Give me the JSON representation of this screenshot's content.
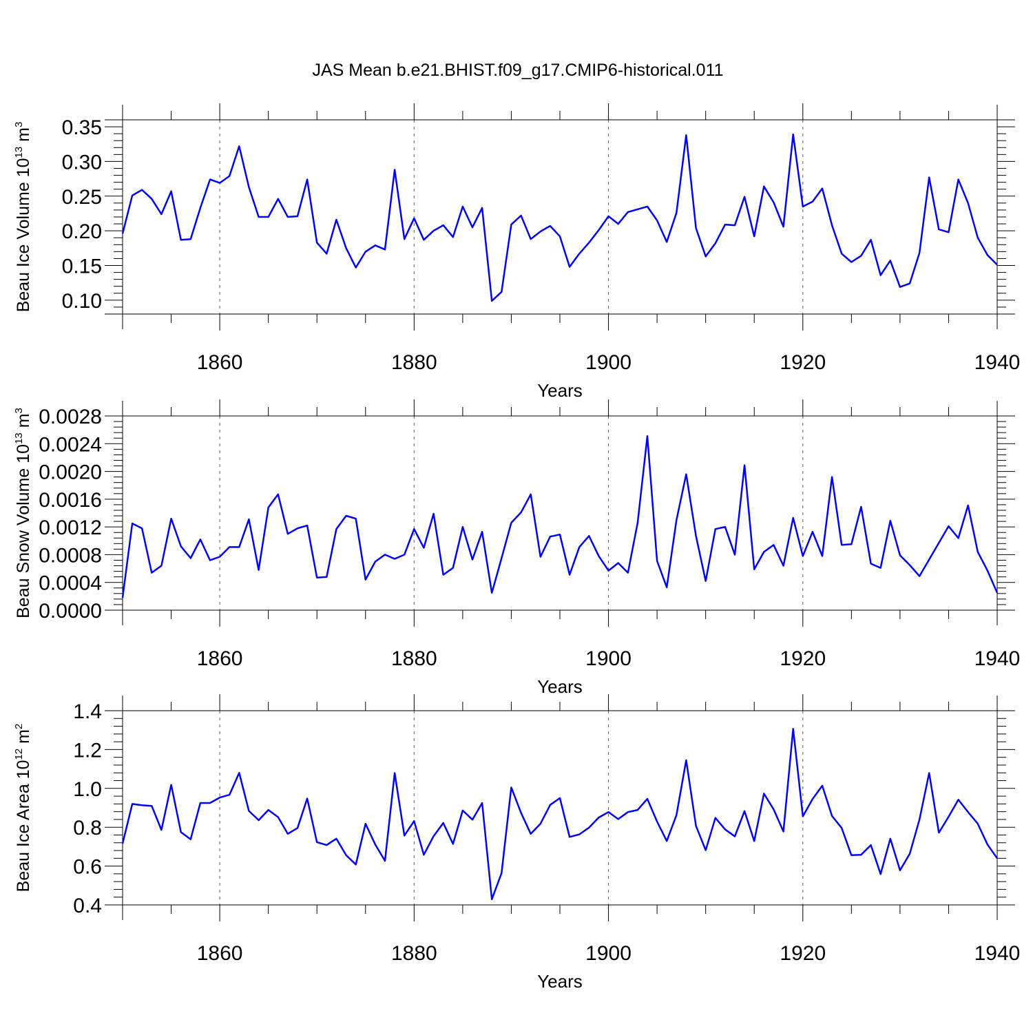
{
  "title": "JAS Mean b.e21.BHIST.f09_g17.CMIP6-historical.011",
  "colors": {
    "line": "#0000ff",
    "axis": "#000000",
    "grid": "#555555"
  },
  "chart_data": [
    {
      "type": "line",
      "xlabel": "Years",
      "ylabel": {
        "text": "Beau Ice Volume 10",
        "sup": "13",
        "unit": " m",
        "unit_sup": "3"
      },
      "xlim": [
        1850,
        1940
      ],
      "ylim": [
        0.08,
        0.36
      ],
      "xticks": [
        1860,
        1880,
        1900,
        1920,
        1940
      ],
      "yticks": [
        "0.10",
        "0.15",
        "0.20",
        "0.25",
        "0.30",
        "0.35"
      ],
      "grid": "vertical dashed at major x ticks",
      "series": [
        {
          "x_start": 1850,
          "values": [
            0.196,
            0.251,
            0.259,
            0.246,
            0.224,
            0.257,
            0.187,
            0.188,
            0.233,
            0.274,
            0.269,
            0.279,
            0.322,
            0.263,
            0.22,
            0.22,
            0.246,
            0.22,
            0.221,
            0.274,
            0.183,
            0.167,
            0.216,
            0.175,
            0.147,
            0.17,
            0.179,
            0.173,
            0.288,
            0.188,
            0.218,
            0.187,
            0.2,
            0.208,
            0.191,
            0.235,
            0.205,
            0.233,
            0.099,
            0.112,
            0.209,
            0.222,
            0.188,
            0.199,
            0.207,
            0.192,
            0.148,
            0.167,
            0.183,
            0.201,
            0.221,
            0.21,
            0.227,
            0.231,
            0.235,
            0.215,
            0.184,
            0.226,
            0.338,
            0.204,
            0.163,
            0.182,
            0.209,
            0.208,
            0.249,
            0.192,
            0.264,
            0.241,
            0.206,
            0.339,
            0.235,
            0.242,
            0.261,
            0.208,
            0.167,
            0.155,
            0.164,
            0.187,
            0.136,
            0.157,
            0.119,
            0.124,
            0.168,
            0.277,
            0.202,
            0.198,
            0.274,
            0.24,
            0.19,
            0.165,
            0.151
          ]
        }
      ]
    },
    {
      "type": "line",
      "xlabel": "Years",
      "ylabel": {
        "text": "Beau Snow Volume 10",
        "sup": "13",
        "unit": " m",
        "unit_sup": "3"
      },
      "xlim": [
        1850,
        1940
      ],
      "ylim": [
        0.0,
        0.0028
      ],
      "xticks": [
        1860,
        1880,
        1900,
        1920,
        1940
      ],
      "yticks": [
        "0.0000",
        "0.0004",
        "0.0008",
        "0.0012",
        "0.0016",
        "0.0020",
        "0.0024",
        "0.0028"
      ],
      "grid": "vertical dashed at major x ticks",
      "series": [
        {
          "x_start": 1850,
          "values": [
            0.00018,
            0.00125,
            0.00118,
            0.00054,
            0.00064,
            0.00132,
            0.00092,
            0.00075,
            0.00102,
            0.00072,
            0.00077,
            0.00091,
            0.00091,
            0.00131,
            0.00058,
            0.00148,
            0.00167,
            0.0011,
            0.00118,
            0.00122,
            0.00047,
            0.00048,
            0.00117,
            0.00136,
            0.00132,
            0.00044,
            0.0007,
            0.0008,
            0.00074,
            0.0008,
            0.00117,
            0.0009,
            0.00139,
            0.00051,
            0.00061,
            0.0012,
            0.00073,
            0.00113,
            0.00025,
            0.00075,
            0.00126,
            0.00141,
            0.00167,
            0.00077,
            0.00106,
            0.00109,
            0.00051,
            0.00091,
            0.00107,
            0.00078,
            0.00057,
            0.00068,
            0.00054,
            0.00126,
            0.00251,
            0.00071,
            0.00033,
            0.0013,
            0.00196,
            0.00107,
            0.00042,
            0.00117,
            0.0012,
            0.0008,
            0.00209,
            0.00059,
            0.00084,
            0.00094,
            0.00064,
            0.00133,
            0.00078,
            0.00113,
            0.00078,
            0.00192,
            0.00094,
            0.00095,
            0.00149,
            0.00067,
            0.00061,
            0.00129,
            0.00079,
            0.00065,
            0.00049,
            0.00073,
            0.00097,
            0.00121,
            0.00104,
            0.00151,
            0.00084,
            0.00057,
            0.00025
          ]
        }
      ]
    },
    {
      "type": "line",
      "xlabel": "Years",
      "ylabel": {
        "text": "Beau Ice Area 10",
        "sup": "12",
        "unit": " m",
        "unit_sup": "2"
      },
      "xlim": [
        1850,
        1940
      ],
      "ylim": [
        0.4,
        1.4
      ],
      "xticks": [
        1860,
        1880,
        1900,
        1920,
        1940
      ],
      "yticks": [
        "0.4",
        "0.6",
        "0.8",
        "1.0",
        "1.2",
        "1.4"
      ],
      "grid": "vertical dashed at major x ticks",
      "series": [
        {
          "x_start": 1850,
          "values": [
            0.716,
            0.92,
            0.913,
            0.91,
            0.786,
            1.018,
            0.775,
            0.738,
            0.925,
            0.925,
            0.953,
            0.967,
            1.08,
            0.884,
            0.836,
            0.889,
            0.852,
            0.766,
            0.796,
            0.948,
            0.723,
            0.708,
            0.741,
            0.656,
            0.608,
            0.818,
            0.711,
            0.627,
            1.079,
            0.757,
            0.832,
            0.658,
            0.754,
            0.822,
            0.714,
            0.886,
            0.839,
            0.925,
            0.429,
            0.564,
            1.005,
            0.874,
            0.766,
            0.818,
            0.915,
            0.95,
            0.75,
            0.763,
            0.798,
            0.85,
            0.878,
            0.842,
            0.878,
            0.889,
            0.946,
            0.829,
            0.729,
            0.863,
            1.145,
            0.807,
            0.682,
            0.848,
            0.789,
            0.753,
            0.883,
            0.729,
            0.973,
            0.892,
            0.778,
            1.307,
            0.856,
            0.945,
            1.014,
            0.858,
            0.796,
            0.656,
            0.658,
            0.708,
            0.559,
            0.741,
            0.578,
            0.663,
            0.839,
            1.079,
            0.772,
            0.854,
            0.942,
            0.878,
            0.818,
            0.711,
            0.64
          ]
        }
      ]
    }
  ]
}
